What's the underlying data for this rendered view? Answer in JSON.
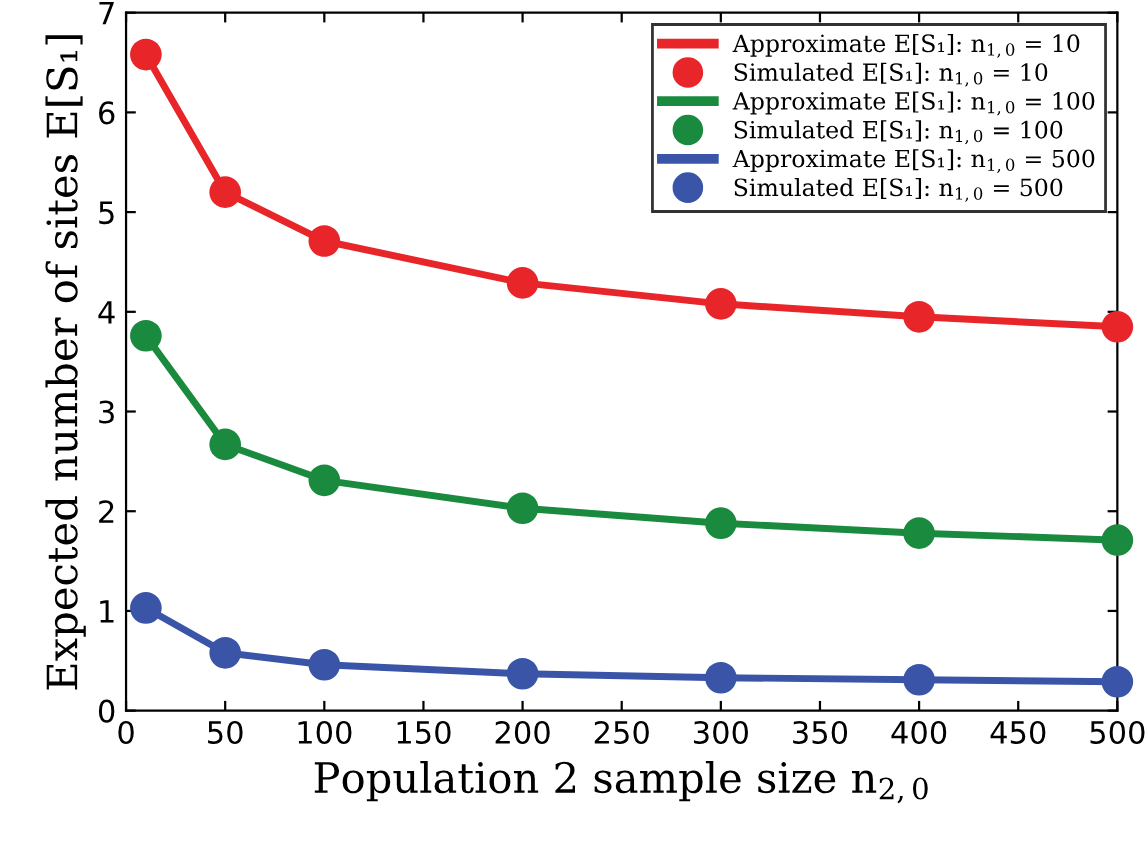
{
  "chart_data": {
    "type": "line",
    "xlabel": "Population 2 sample size n$_{2,0}$",
    "ylabel": "Expected number of sites E[S₁]",
    "x": [
      10,
      50,
      100,
      200,
      300,
      400,
      500
    ],
    "series": [
      {
        "name": "Approximate E[S₁]: n$_{1,0}$ = 10",
        "color": "#e8262a",
        "values": [
          6.58,
          5.2,
          4.71,
          4.29,
          4.08,
          3.95,
          3.85
        ]
      },
      {
        "name": "Simulated E[S₁]: n$_{1,0}$ = 10",
        "type": "scatter",
        "marker": "circle",
        "color": "#e8262a",
        "values": [
          6.58,
          5.2,
          4.71,
          4.29,
          4.08,
          3.95,
          3.85
        ]
      },
      {
        "name": "Approximate E[S₁]: n$_{1,0}$ = 100",
        "color": "#1a8a3e",
        "values": [
          3.76,
          2.67,
          2.31,
          2.03,
          1.88,
          1.78,
          1.71
        ]
      },
      {
        "name": "Simulated E[S₁]: n$_{1,0}$ = 100",
        "type": "scatter",
        "marker": "circle",
        "color": "#1a8a3e",
        "values": [
          3.76,
          2.67,
          2.31,
          2.03,
          1.88,
          1.78,
          1.71
        ]
      },
      {
        "name": "Approximate E[S₁]: n$_{1,0}$ = 500",
        "color": "#3a55a8",
        "values": [
          1.03,
          0.58,
          0.46,
          0.37,
          0.33,
          0.31,
          0.29
        ]
      },
      {
        "name": "Simulated E[S₁]: n$_{1,0}$ = 500",
        "type": "scatter",
        "marker": "circle",
        "color": "#3a55a8",
        "values": [
          1.03,
          0.58,
          0.46,
          0.37,
          0.33,
          0.31,
          0.29
        ]
      }
    ],
    "xlim": [
      0,
      500
    ],
    "xticks": [
      0,
      50,
      100,
      150,
      200,
      250,
      300,
      350,
      400,
      450,
      500
    ],
    "ylim": [
      0,
      7
    ],
    "yticks": [
      0,
      1,
      2,
      3,
      4,
      5,
      6,
      7
    ],
    "grid": false,
    "legend": "top right",
    "line_style": "solid"
  }
}
